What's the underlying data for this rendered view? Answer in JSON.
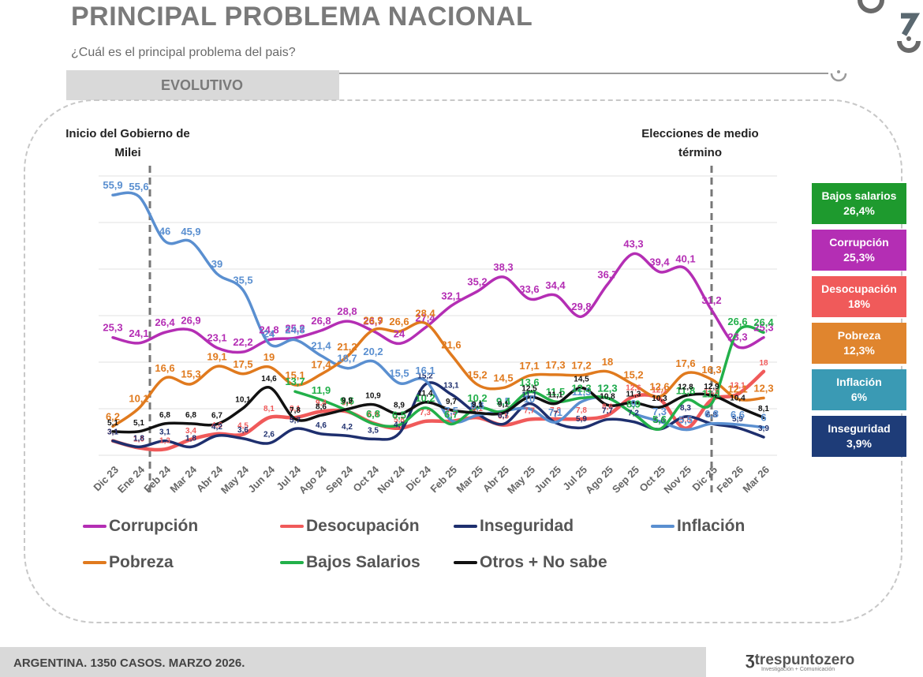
{
  "header": {
    "title": "PRINCIPAL PROBLEMA NACIONAL",
    "subtitle": "¿Cuál es el principal problema del pais?",
    "section_tab": "EVOLUTIVO"
  },
  "annotations": {
    "start": "Inicio del Gobierno de Milei",
    "start_line1": "Inicio del Gobierno de",
    "start_line2": "Milei",
    "elections_line1": "Elecciones de medio",
    "elections_line2": "término"
  },
  "summary_boxes": [
    {
      "label": "Bajos salarios",
      "value": "26,4%",
      "color": "#1e9a2e"
    },
    {
      "label": "Corrupción",
      "value": "25,3%",
      "color": "#b42eb4"
    },
    {
      "label": "Desocupación",
      "value": "18%",
      "color": "#f05a5a"
    },
    {
      "label": "Pobreza",
      "value": "12,3%",
      "color": "#e0852e"
    },
    {
      "label": "Inflación",
      "value": "6%",
      "color": "#3a9ab4"
    },
    {
      "label": "Inseguridad",
      "value": "3,9%",
      "color": "#1e3c78"
    }
  ],
  "footer": {
    "sample": "ARGENTINA. 1350 CASOS. MARZO 2026.",
    "brand": "trespuntozero",
    "brand_tagline": "Investigación + Comunicación"
  },
  "chart_data": {
    "type": "line",
    "title": "PRINCIPAL PROBLEMA NACIONAL",
    "xlabel": "",
    "ylabel": "",
    "ylim": [
      0,
      60
    ],
    "grid": true,
    "legend_position": "bottom",
    "categories": [
      "Dic 23",
      "Ene 24",
      "Feb 24",
      "Mar 24",
      "Abr 24",
      "May 24",
      "Jun 24",
      "Jul 24",
      "Ago 24",
      "Sep 24",
      "Oct 24",
      "Nov 24",
      "Dic 24",
      "Feb 25",
      "Mar 25",
      "Abr 25",
      "May 25",
      "Jun 25",
      "Jul 25",
      "Ago 25",
      "Sep 25",
      "Oct 25",
      "Nov 25",
      "Dic 25",
      "Feb 26",
      "Mar 26"
    ],
    "vertical_markers": [
      {
        "category": "Ene 24",
        "label": "Inicio del Gobierno de Milei"
      },
      {
        "category": "Dic 25",
        "label": "Elecciones de medio término"
      }
    ],
    "series": [
      {
        "name": "Corrupción",
        "color": "#b42eb4",
        "values": [
          25.3,
          24.1,
          26.4,
          26.9,
          23.1,
          22.2,
          24.8,
          25.2,
          26.8,
          28.8,
          26.7,
          24,
          27.4,
          32.1,
          35.2,
          38.3,
          33.6,
          34.4,
          29.8,
          36.7,
          43.3,
          39.4,
          40.1,
          31.2,
          23.3,
          25.3
        ]
      },
      {
        "name": "Desocupación",
        "color": "#f05a5a",
        "values": [
          3.1,
          1.6,
          1.3,
          3.4,
          4.6,
          4.5,
          8.1,
          8.1,
          9.4,
          9.4,
          6.9,
          5.8,
          7.3,
          7.3,
          8.1,
          6.5,
          7.7,
          7.8,
          7.8,
          8.6,
          12.6,
          12.1,
          5.8,
          11.9,
          13.1,
          18.0
        ]
      },
      {
        "name": "Inseguridad",
        "color": "#1e2f6e",
        "values": [
          3.1,
          1.8,
          3.1,
          1.8,
          4.2,
          3.6,
          2.6,
          5.7,
          4.6,
          4.2,
          3.5,
          4.7,
          15.2,
          13.1,
          8.9,
          6.7,
          11.1,
          7,
          5.9,
          7.7,
          7.2,
          5.6,
          8.3,
          6.8,
          5.9,
          3.9
        ]
      },
      {
        "name": "Inflación",
        "color": "#5a8fd0",
        "values": [
          55.9,
          55.6,
          46,
          45.9,
          39,
          35.5,
          24,
          24.8,
          21.4,
          18.7,
          20.2,
          15.5,
          16.1,
          7.5,
          8.6,
          9.5,
          10,
          7.1,
          11.5,
          12.3,
          9,
          7.3,
          5.5,
          6.8,
          6.6,
          6
        ]
      },
      {
        "name": "Pobreza",
        "color": "#e07a1e",
        "values": [
          6.2,
          10.1,
          16.6,
          15.3,
          19.1,
          17.5,
          19.0,
          15.1,
          17.4,
          21.2,
          26.9,
          26.6,
          28.4,
          21.6,
          15.2,
          14.5,
          17.1,
          17.3,
          17.2,
          18.0,
          15.2,
          12.6,
          17.6,
          16.3,
          12.1,
          12.3
        ]
      },
      {
        "name": "Bajos Salarios",
        "color": "#22b04a",
        "values": [
          null,
          null,
          null,
          null,
          null,
          null,
          null,
          13.7,
          11.9,
          9.6,
          6.8,
          6.5,
          10.2,
          6.7,
          10.2,
          9.4,
          13.6,
          11.5,
          12.3,
          12.3,
          8.9,
          5.6,
          11.8,
          11.1,
          26.6,
          26.4
        ]
      },
      {
        "name": "Otros + No sabe",
        "color": "#111111",
        "values": [
          5.1,
          5.1,
          6.8,
          6.8,
          6.7,
          10.1,
          14.6,
          7.8,
          8.6,
          9.9,
          10.9,
          8.9,
          11.4,
          9.7,
          9.1,
          9.1,
          12.5,
          11.1,
          14.5,
          10.8,
          11.3,
          10.3,
          12.8,
          12.9,
          10.4,
          8.1
        ]
      }
    ]
  }
}
